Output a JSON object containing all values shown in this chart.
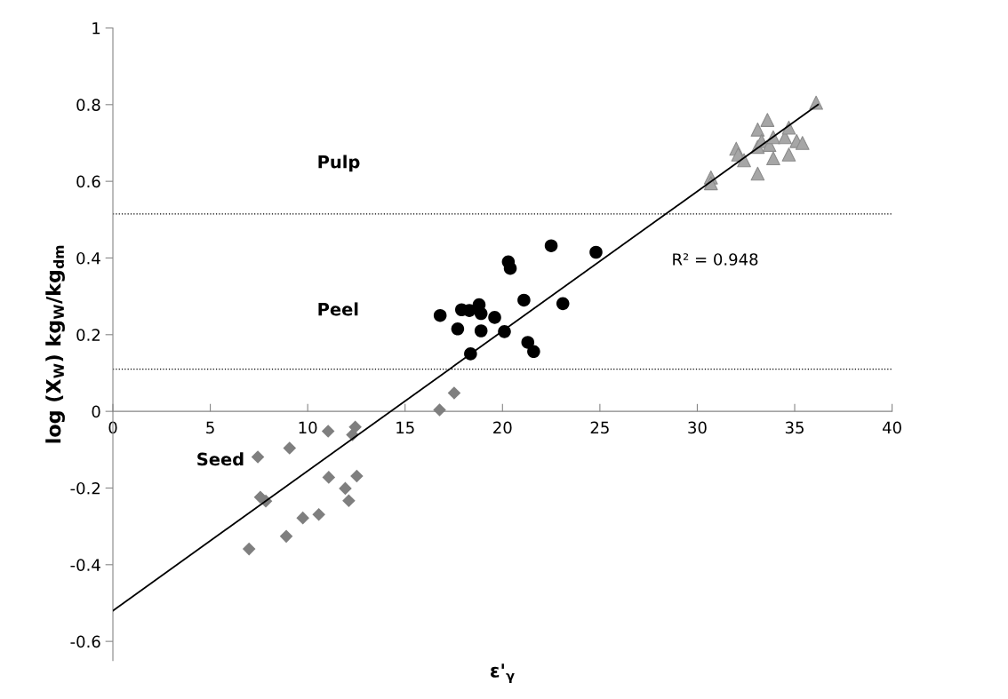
{
  "chart_data": {
    "type": "scatter",
    "xlabel": "ε'$_{γ}$",
    "ylabel": "log (X$_{W}$) kg$_{W}$/kg$_{dm}$",
    "xlim": [
      0,
      40
    ],
    "xticks": [
      0,
      5,
      10,
      15,
      20,
      25,
      30,
      35,
      40
    ],
    "ylim": [
      -0.65,
      1
    ],
    "yticks": [
      -0.6,
      -0.4,
      -0.2,
      0,
      0.2,
      0.4,
      0.6,
      0.8,
      1
    ],
    "grid": false,
    "legend": false,
    "series": [
      {
        "marker": "diamond",
        "color": "#7f7f7f",
        "x": [
          7.44,
          9.07,
          11.05,
          12.44,
          12.3,
          7.57,
          7.85,
          11.08,
          12.52,
          11.93,
          12.11,
          9.75,
          10.57,
          8.9,
          6.99,
          16.77,
          17.52
        ],
        "values": [
          -0.119,
          -0.096,
          -0.052,
          -0.041,
          -0.061,
          -0.224,
          -0.234,
          -0.172,
          -0.169,
          -0.201,
          -0.233,
          -0.278,
          -0.269,
          -0.326,
          -0.359,
          0.004,
          0.048
        ]
      },
      {
        "marker": "circle",
        "color": "#000000",
        "x": [
          16.8,
          17.7,
          17.9,
          18.3,
          18.36,
          18.8,
          18.9,
          18.9,
          19.6,
          20.1,
          20.3,
          20.4,
          21.1,
          21.3,
          21.6,
          22.5,
          23.1,
          24.8
        ],
        "values": [
          0.25,
          0.215,
          0.265,
          0.263,
          0.15,
          0.278,
          0.255,
          0.21,
          0.245,
          0.208,
          0.39,
          0.373,
          0.29,
          0.18,
          0.156,
          0.432,
          0.281,
          0.415
        ]
      },
      {
        "marker": "triangle",
        "color": "#a6a6a6",
        "x": [
          30.7,
          30.7,
          32.0,
          32.1,
          32.4,
          33.1,
          33.1,
          33.1,
          33.3,
          33.6,
          33.7,
          33.9,
          33.9,
          34.5,
          34.7,
          34.7,
          35.1,
          35.4,
          36.1
        ],
        "values": [
          0.61,
          0.595,
          0.685,
          0.67,
          0.655,
          0.735,
          0.69,
          0.62,
          0.705,
          0.76,
          0.695,
          0.715,
          0.66,
          0.715,
          0.74,
          0.67,
          0.705,
          0.7,
          0.805
        ]
      },
      {
        "type": "line",
        "marker": "none",
        "line_style": "solid",
        "color": "#000000",
        "x": [
          0,
          36.2
        ],
        "values": [
          -0.52,
          0.8
        ]
      }
    ],
    "ref_lines": [
      {
        "axis": "y",
        "value": 0.515,
        "line_style": "dotted",
        "color": "#000000"
      },
      {
        "axis": "y",
        "value": 0.11,
        "line_style": "dotted",
        "color": "#000000"
      }
    ],
    "annotations": [
      "Pulp",
      "Peel",
      "Seed",
      "R² = 0.948"
    ]
  }
}
